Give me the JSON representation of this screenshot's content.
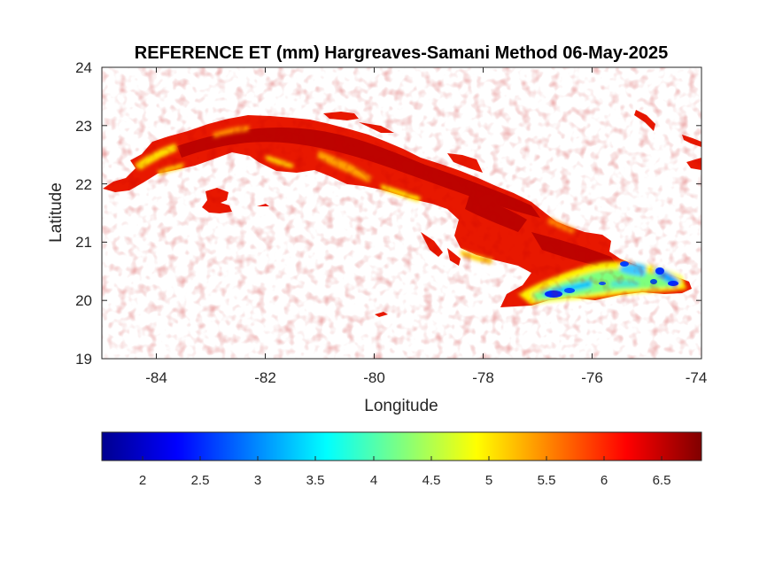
{
  "chart_data": {
    "type": "heatmap",
    "title": "REFERENCE ET (mm) Hargreaves-Samani Method  06-May-2025",
    "xlabel": "Longitude",
    "ylabel": "Latitude",
    "xlim": [
      -85,
      -74
    ],
    "ylim": [
      19,
      24
    ],
    "xticks": [
      "-84",
      "-82",
      "-80",
      "-78",
      "-76",
      "-74"
    ],
    "yticks": [
      "19",
      "20",
      "21",
      "22",
      "23",
      "24"
    ],
    "colorbar": {
      "placement": "bottom",
      "colormap": "jet",
      "range": [
        1.6,
        6.8
      ],
      "ticks": [
        "2",
        "2.5",
        "3",
        "3.5",
        "4",
        "4.5",
        "5",
        "5.5",
        "6",
        "6.5"
      ]
    },
    "field": {
      "dominant_value_range": [
        5.6,
        6.8
      ],
      "low_value_region": "southeastern Cuba (approx. -77.5 to -74.5 lon, 19.9 to 20.6 lat)",
      "low_value_range": [
        2.5,
        5.0
      ]
    },
    "grid": false,
    "colors": {
      "background": "#ffffff",
      "axes": "#262626",
      "high": "#b40000",
      "mid_high": "#ff4000",
      "mid": "#ffff00",
      "low": "#0050ff"
    }
  }
}
